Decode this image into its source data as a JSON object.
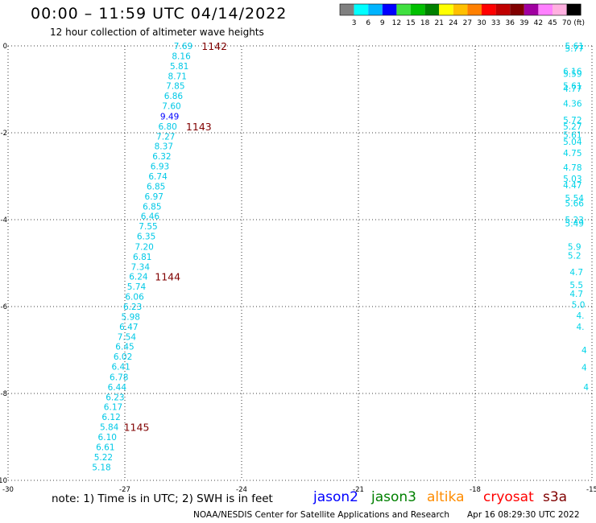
{
  "header": {
    "title": "00:00 – 11:59 UTC 04/14/2022",
    "subtitle": "12 hour collection of altimeter wave heights"
  },
  "legend": {
    "colors": [
      "#808080",
      "#00ffff",
      "#00b4ff",
      "#0000ff",
      "#40e040",
      "#00c000",
      "#008000",
      "#ffff00",
      "#ffc000",
      "#ff8000",
      "#ff0000",
      "#c00000",
      "#800000",
      "#a000a0",
      "#ff80ff",
      "#ffb0e0",
      "#000000"
    ],
    "labels": [
      "3",
      "6",
      "9",
      "12",
      "15",
      "18",
      "21",
      "24",
      "27",
      "30",
      "33",
      "36",
      "39",
      "42",
      "45",
      "70"
    ],
    "unit": "(ft)"
  },
  "footer": {
    "note": "note:  1) Time is in UTC;  2) SWH is in feet",
    "satellites": [
      {
        "name": "jason2",
        "color": "#0000ff"
      },
      {
        "name": "jason3",
        "color": "#008000"
      },
      {
        "name": "altika",
        "color": "#ff8c00"
      },
      {
        "name": "cryosat",
        "color": "#ff0000"
      },
      {
        "name": "s3a",
        "color": "#800000"
      }
    ],
    "credit": "NOAA/NESDIS Center for Satellite Applications and Research",
    "timestamp": "Apr 16 08:29:30 UTC 2022"
  },
  "chart_data": {
    "type": "scatter",
    "xlim": [
      -30,
      -15
    ],
    "ylim": [
      -10,
      0
    ],
    "xticks": [
      -30,
      -27,
      -24,
      -21,
      -18,
      -15
    ],
    "yticks": [
      0,
      -2,
      -4,
      -6,
      -8,
      -10
    ],
    "grid": true,
    "main_track": [
      {
        "x": -25.5,
        "y": 0.0,
        "v": "7.69",
        "c": "#00ffff"
      },
      {
        "x": -25.55,
        "y": -0.23,
        "v": "8.16",
        "c": "#00ffff"
      },
      {
        "x": -25.6,
        "y": -0.46,
        "v": "5.81",
        "c": "#00ffff"
      },
      {
        "x": -25.65,
        "y": -0.69,
        "v": "8.71",
        "c": "#00ffff"
      },
      {
        "x": -25.7,
        "y": -0.92,
        "v": "7.85",
        "c": "#00ffff"
      },
      {
        "x": -25.75,
        "y": -1.15,
        "v": "6.86",
        "c": "#00ffff"
      },
      {
        "x": -25.8,
        "y": -1.38,
        "v": "7.60",
        "c": "#00ffff"
      },
      {
        "x": -25.85,
        "y": -1.62,
        "v": "9.49",
        "c": "#0000ff"
      },
      {
        "x": -25.9,
        "y": -1.85,
        "v": "6.80",
        "c": "#00ffff"
      },
      {
        "x": -25.95,
        "y": -2.08,
        "v": "7.27",
        "c": "#00ffff"
      },
      {
        "x": -26.0,
        "y": -2.31,
        "v": "8.37",
        "c": "#00ffff"
      },
      {
        "x": -26.05,
        "y": -2.54,
        "v": "6.32",
        "c": "#00ffff"
      },
      {
        "x": -26.1,
        "y": -2.77,
        "v": "6.93",
        "c": "#00ffff"
      },
      {
        "x": -26.15,
        "y": -3.0,
        "v": "6.74",
        "c": "#00ffff"
      },
      {
        "x": -26.2,
        "y": -3.23,
        "v": "6.85",
        "c": "#00ffff"
      },
      {
        "x": -26.25,
        "y": -3.46,
        "v": "6.97",
        "c": "#00ffff"
      },
      {
        "x": -26.3,
        "y": -3.69,
        "v": "6.85",
        "c": "#00ffff"
      },
      {
        "x": -26.35,
        "y": -3.92,
        "v": "6.46",
        "c": "#00ffff"
      },
      {
        "x": -26.4,
        "y": -4.15,
        "v": "7.55",
        "c": "#00ffff"
      },
      {
        "x": -26.45,
        "y": -4.38,
        "v": "6.35",
        "c": "#00ffff"
      },
      {
        "x": -26.5,
        "y": -4.62,
        "v": "7.20",
        "c": "#00ffff"
      },
      {
        "x": -26.55,
        "y": -4.85,
        "v": "6.81",
        "c": "#00ffff"
      },
      {
        "x": -26.6,
        "y": -5.08,
        "v": "7.34",
        "c": "#00ffff"
      },
      {
        "x": -26.65,
        "y": -5.31,
        "v": "6.24",
        "c": "#00ffff"
      },
      {
        "x": -26.7,
        "y": -5.54,
        "v": "5.74",
        "c": "#00ffff"
      },
      {
        "x": -26.75,
        "y": -5.77,
        "v": "6.06",
        "c": "#00ffff"
      },
      {
        "x": -26.8,
        "y": -6.0,
        "v": "6.23",
        "c": "#00ffff"
      },
      {
        "x": -26.85,
        "y": -6.23,
        "v": "5.98",
        "c": "#00ffff"
      },
      {
        "x": -26.9,
        "y": -6.46,
        "v": "6.47",
        "c": "#00ffff"
      },
      {
        "x": -26.95,
        "y": -6.69,
        "v": "7.54",
        "c": "#00ffff"
      },
      {
        "x": -27.0,
        "y": -6.92,
        "v": "6.45",
        "c": "#00ffff"
      },
      {
        "x": -27.05,
        "y": -7.15,
        "v": "6.02",
        "c": "#00ffff"
      },
      {
        "x": -27.1,
        "y": -7.38,
        "v": "6.41",
        "c": "#00ffff"
      },
      {
        "x": -27.15,
        "y": -7.62,
        "v": "6.78",
        "c": "#00ffff"
      },
      {
        "x": -27.2,
        "y": -7.85,
        "v": "6.44",
        "c": "#00ffff"
      },
      {
        "x": -27.25,
        "y": -8.08,
        "v": "6.23",
        "c": "#00ffff"
      },
      {
        "x": -27.3,
        "y": -8.31,
        "v": "6.17",
        "c": "#00ffff"
      },
      {
        "x": -27.35,
        "y": -8.54,
        "v": "6.12",
        "c": "#00ffff"
      },
      {
        "x": -27.4,
        "y": -8.77,
        "v": "5.84",
        "c": "#00ffff"
      },
      {
        "x": -27.45,
        "y": -9.0,
        "v": "6.10",
        "c": "#00ffff"
      },
      {
        "x": -27.5,
        "y": -9.23,
        "v": "6.61",
        "c": "#00ffff"
      },
      {
        "x": -27.55,
        "y": -9.46,
        "v": "5.22",
        "c": "#00ffff"
      },
      {
        "x": -27.6,
        "y": -9.69,
        "v": "5.18",
        "c": "#00ffff"
      }
    ],
    "time_labels": [
      {
        "x": -24.7,
        "y": 0.0,
        "t": "1142"
      },
      {
        "x": -25.1,
        "y": -1.85,
        "t": "1143"
      },
      {
        "x": -25.9,
        "y": -5.31,
        "t": "1144"
      },
      {
        "x": -26.7,
        "y": -8.77,
        "t": "1145"
      }
    ],
    "edge_track": [
      {
        "x": -15.45,
        "y": 0.0,
        "v": "5.61"
      },
      {
        "x": -15.45,
        "y": -0.06,
        "v": "5.77"
      },
      {
        "x": -15.5,
        "y": -0.58,
        "v": "6.16"
      },
      {
        "x": -15.5,
        "y": -0.64,
        "v": "5.59"
      },
      {
        "x": -15.5,
        "y": -0.92,
        "v": "5.61"
      },
      {
        "x": -15.5,
        "y": -0.98,
        "v": "4.77"
      },
      {
        "x": -15.5,
        "y": -1.32,
        "v": "4.36"
      },
      {
        "x": -15.5,
        "y": -1.7,
        "v": "5.72"
      },
      {
        "x": -15.5,
        "y": -1.85,
        "v": "5.27"
      },
      {
        "x": -15.5,
        "y": -2.05,
        "v": "5.61"
      },
      {
        "x": -15.5,
        "y": -2.2,
        "v": "5.04"
      },
      {
        "x": -15.5,
        "y": -2.46,
        "v": "4.75"
      },
      {
        "x": -15.5,
        "y": -2.8,
        "v": "4.78"
      },
      {
        "x": -15.5,
        "y": -3.06,
        "v": "5.03"
      },
      {
        "x": -15.5,
        "y": -3.2,
        "v": "4.47"
      },
      {
        "x": -15.45,
        "y": -3.5,
        "v": "5.54"
      },
      {
        "x": -15.45,
        "y": -3.62,
        "v": "5.66"
      },
      {
        "x": -15.45,
        "y": -4.0,
        "v": "5.23"
      },
      {
        "x": -15.45,
        "y": -4.08,
        "v": "5.49"
      },
      {
        "x": -15.45,
        "y": -4.62,
        "v": "5.9"
      },
      {
        "x": -15.45,
        "y": -4.82,
        "v": "5.2"
      },
      {
        "x": -15.4,
        "y": -5.2,
        "v": "4.7"
      },
      {
        "x": -15.4,
        "y": -5.5,
        "v": "5.5"
      },
      {
        "x": -15.4,
        "y": -5.7,
        "v": "4.7"
      },
      {
        "x": -15.35,
        "y": -5.95,
        "v": "5.0"
      },
      {
        "x": -15.3,
        "y": -6.2,
        "v": "4."
      },
      {
        "x": -15.3,
        "y": -6.46,
        "v": "4."
      },
      {
        "x": -15.2,
        "y": -7.0,
        "v": "4"
      },
      {
        "x": -15.2,
        "y": -7.4,
        "v": "4"
      },
      {
        "x": -15.15,
        "y": -7.85,
        "v": "4"
      }
    ]
  }
}
